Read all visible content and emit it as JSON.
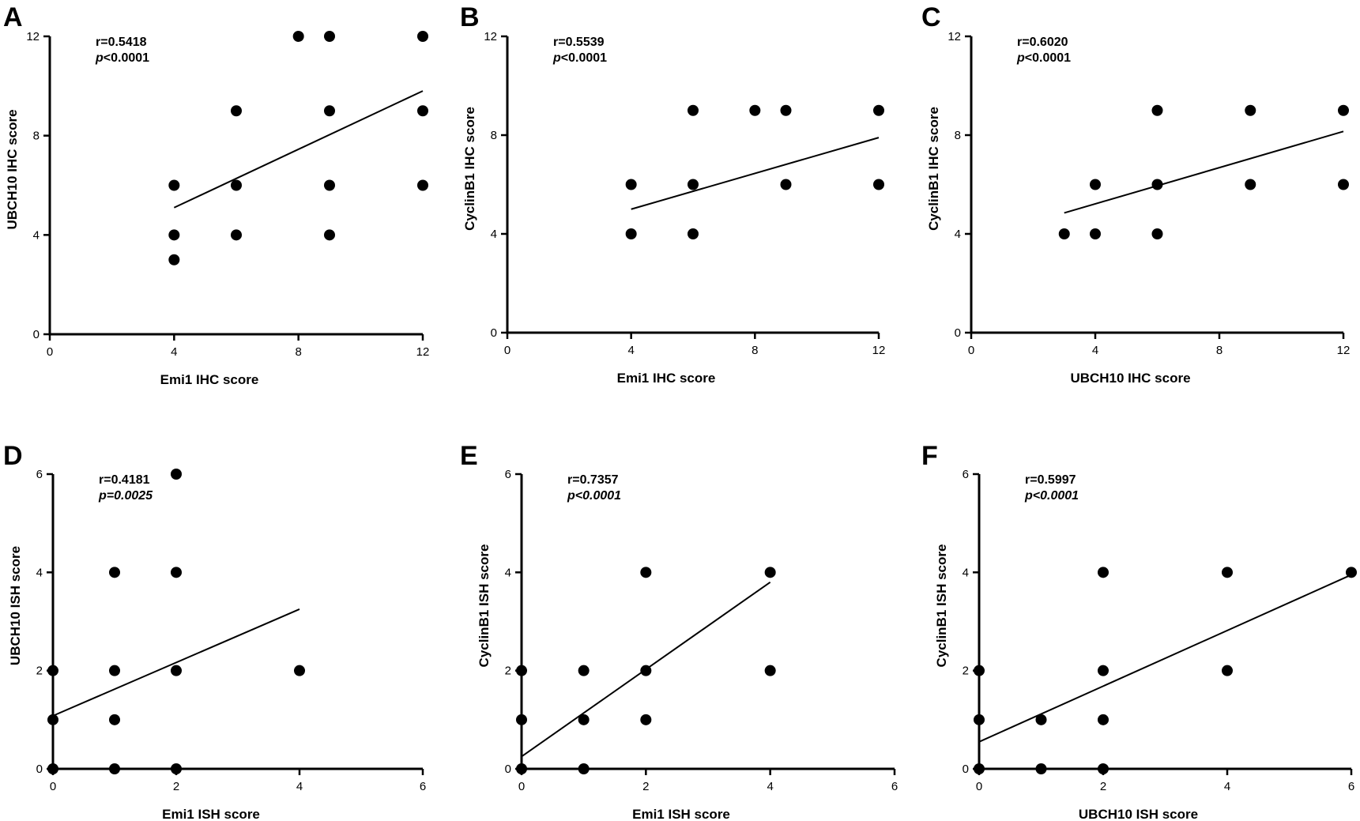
{
  "chart_data": [
    {
      "panel": "A",
      "type": "scatter",
      "xlabel": "Emi1 IHC score",
      "ylabel": "UBCH10 IHC score",
      "xlim": [
        0,
        12
      ],
      "ylim": [
        0,
        12
      ],
      "xticks": [
        0,
        4,
        8,
        12
      ],
      "yticks": [
        0,
        4,
        8,
        12
      ],
      "r_text": "r=0.5418",
      "p_prefix": "p",
      "p_value": "<0.0001",
      "p_italic_all": false,
      "points": [
        [
          4,
          6
        ],
        [
          4,
          4
        ],
        [
          4,
          3
        ],
        [
          6,
          9
        ],
        [
          6,
          6
        ],
        [
          6,
          4
        ],
        [
          8,
          12
        ],
        [
          9,
          12
        ],
        [
          9,
          9
        ],
        [
          9,
          6
        ],
        [
          9,
          4
        ],
        [
          12,
          12
        ],
        [
          12,
          9
        ],
        [
          12,
          6
        ]
      ],
      "fit_line": [
        [
          4,
          5.1
        ],
        [
          12,
          9.8
        ]
      ]
    },
    {
      "panel": "B",
      "type": "scatter",
      "xlabel": "Emi1 IHC score",
      "ylabel": "CyclinB1 IHC score",
      "xlim": [
        0,
        12
      ],
      "ylim": [
        0,
        12
      ],
      "xticks": [
        0,
        4,
        8,
        12
      ],
      "yticks": [
        0,
        4,
        8,
        12
      ],
      "r_text": "r=0.5539",
      "p_prefix": "p",
      "p_value": "<0.0001",
      "p_italic_all": false,
      "points": [
        [
          4,
          6
        ],
        [
          4,
          4
        ],
        [
          6,
          9
        ],
        [
          6,
          6
        ],
        [
          6,
          4
        ],
        [
          8,
          9
        ],
        [
          9,
          9
        ],
        [
          9,
          6
        ],
        [
          12,
          9
        ],
        [
          12,
          6
        ]
      ],
      "fit_line": [
        [
          4,
          5.0
        ],
        [
          12,
          7.9
        ]
      ]
    },
    {
      "panel": "C",
      "type": "scatter",
      "xlabel": "UBCH10 IHC score",
      "ylabel": "CyclinB1 IHC score",
      "xlim": [
        0,
        12
      ],
      "ylim": [
        0,
        12
      ],
      "xticks": [
        0,
        4,
        8,
        12
      ],
      "yticks": [
        0,
        4,
        8,
        12
      ],
      "r_text": "r=0.6020",
      "p_prefix": "p",
      "p_value": "<0.0001",
      "p_italic_all": false,
      "points": [
        [
          3,
          4
        ],
        [
          4,
          6
        ],
        [
          4,
          4
        ],
        [
          6,
          9
        ],
        [
          6,
          6
        ],
        [
          6,
          4
        ],
        [
          9,
          9
        ],
        [
          9,
          6
        ],
        [
          12,
          9
        ],
        [
          12,
          6
        ]
      ],
      "fit_line": [
        [
          3,
          4.85
        ],
        [
          12,
          8.15
        ]
      ]
    },
    {
      "panel": "D",
      "type": "scatter",
      "xlabel": "Emi1 ISH score",
      "ylabel": "UBCH10 ISH score",
      "xlim": [
        0,
        6
      ],
      "ylim": [
        0,
        6
      ],
      "xticks": [
        0,
        2,
        4,
        6
      ],
      "yticks": [
        0,
        2,
        4,
        6
      ],
      "r_text": "r=0.4181",
      "p_prefix": "p",
      "p_value": "=0.0025",
      "p_italic_all": true,
      "points": [
        [
          0,
          2
        ],
        [
          0,
          1
        ],
        [
          0,
          0
        ],
        [
          1,
          4
        ],
        [
          1,
          2
        ],
        [
          1,
          1
        ],
        [
          1,
          0
        ],
        [
          2,
          6
        ],
        [
          2,
          4
        ],
        [
          2,
          2
        ],
        [
          2,
          0
        ],
        [
          4,
          2
        ]
      ],
      "fit_line": [
        [
          0,
          1.08
        ],
        [
          4,
          3.25
        ]
      ]
    },
    {
      "panel": "E",
      "type": "scatter",
      "xlabel": "Emi1 ISH score",
      "ylabel": "CyclinB1 ISH score",
      "xlim": [
        0,
        6
      ],
      "ylim": [
        0,
        6
      ],
      "xticks": [
        0,
        2,
        4,
        6
      ],
      "yticks": [
        0,
        2,
        4,
        6
      ],
      "r_text": "r=0.7357",
      "p_prefix": "p",
      "p_value": "<0.0001",
      "p_italic_all": true,
      "points": [
        [
          0,
          2
        ],
        [
          0,
          1
        ],
        [
          0,
          0
        ],
        [
          1,
          2
        ],
        [
          1,
          1
        ],
        [
          1,
          0
        ],
        [
          2,
          4
        ],
        [
          2,
          2
        ],
        [
          2,
          1
        ],
        [
          4,
          4
        ],
        [
          4,
          2
        ]
      ],
      "fit_line": [
        [
          0,
          0.25
        ],
        [
          4,
          3.8
        ]
      ]
    },
    {
      "panel": "F",
      "type": "scatter",
      "xlabel": "UBCH10 ISH score",
      "ylabel": "CyclinB1 ISH score",
      "xlim": [
        0,
        6
      ],
      "ylim": [
        0,
        6
      ],
      "xticks": [
        0,
        2,
        4,
        6
      ],
      "yticks": [
        0,
        2,
        4,
        6
      ],
      "r_text": "r=0.5997",
      "p_prefix": "p",
      "p_value": "<0.0001",
      "p_italic_all": true,
      "points": [
        [
          0,
          2
        ],
        [
          0,
          1
        ],
        [
          0,
          0
        ],
        [
          1,
          1
        ],
        [
          1,
          0
        ],
        [
          2,
          4
        ],
        [
          2,
          2
        ],
        [
          2,
          1
        ],
        [
          2,
          0
        ],
        [
          4,
          4
        ],
        [
          4,
          2
        ],
        [
          6,
          4
        ]
      ],
      "fit_line": [
        [
          0,
          0.55
        ],
        [
          6,
          3.95
        ]
      ]
    }
  ]
}
